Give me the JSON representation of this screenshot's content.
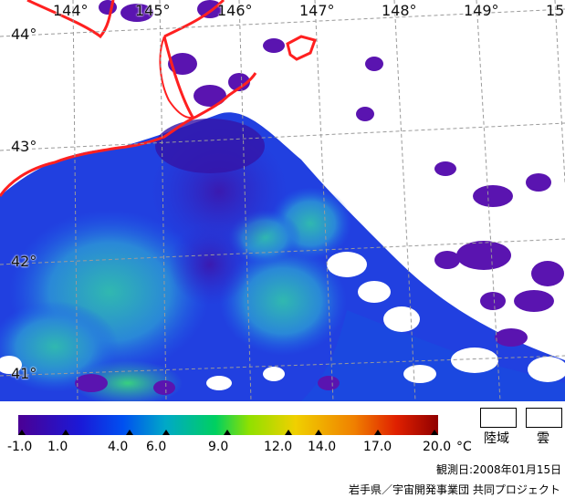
{
  "map": {
    "longitude_labels": [
      "144°",
      "145°",
      "146°",
      "147°",
      "148°",
      "149°",
      "15"
    ],
    "latitude_labels": [
      "44°",
      "43°",
      "42°",
      "41°"
    ]
  },
  "legend": {
    "tick_labels": [
      "-1.0",
      "1.0",
      "4.0",
      "6.0",
      "9.0",
      "12.0",
      "14.0",
      "17.0",
      "20.0"
    ],
    "unit": "°C",
    "land_label": "陸域",
    "cloud_label": "雲",
    "colors": [
      "#4b0094",
      "#1a1ad8",
      "#0050f0",
      "#00a8c8",
      "#00d060",
      "#90e000",
      "#f0d000",
      "#f08000",
      "#e02000",
      "#900000"
    ]
  },
  "footer": {
    "observation_date": "観測日:2008年01月15日",
    "credit": "岩手県／宇宙開発事業団 共同プロジェクト"
  }
}
